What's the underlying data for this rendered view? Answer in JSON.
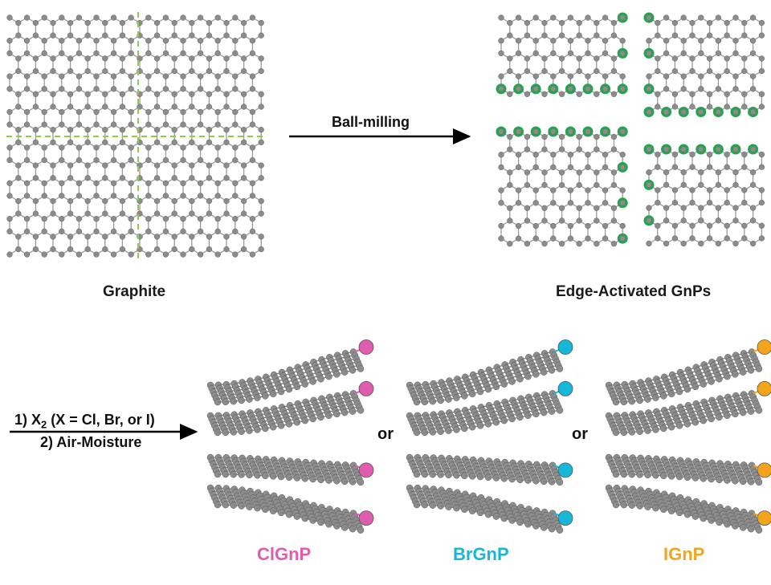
{
  "labels": {
    "graphite": "Graphite",
    "edge_activated": "Edge-Activated GnPs",
    "ball_milling": "Ball-milling",
    "condition_1_prefix": "1) X",
    "condition_1_sub": "2",
    "condition_1_suffix": " (X = Cl, Br, or I)",
    "condition_2": "2) Air-Moisture",
    "or_1": "or",
    "or_2": "or"
  },
  "products": [
    {
      "name": "ClGnP",
      "color": "#e05cae"
    },
    {
      "name": "BrGnP",
      "color": "#16b7d8"
    },
    {
      "name": "IGnP",
      "color": "#f2a51c"
    }
  ],
  "colors": {
    "atom": "#8c8c8c",
    "bond": "#9a9a9a",
    "edge_group": "#25a34f",
    "cut_line": "#8fcc4a",
    "arrow": "#000000"
  }
}
